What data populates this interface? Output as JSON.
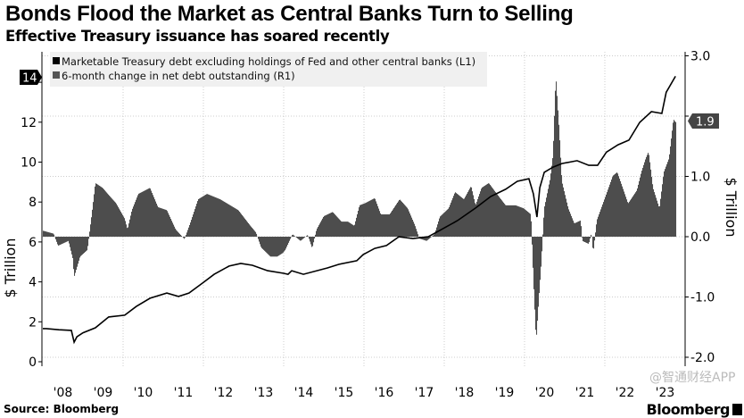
{
  "chart_data": {
    "type": "bar+line",
    "title": "Bonds Flood the Market as Central Banks Turn to Selling",
    "subtitle": "Effective Treasury issuance has soared recently",
    "source": "Source: Bloomberg",
    "brand": "Bloomberg",
    "watermark": "@智通财经APP",
    "xlabel": "",
    "x_ticks": [
      "'08",
      "'09",
      "'10",
      "'11",
      "'12",
      "'13",
      "'14",
      "'15",
      "'16",
      "'17",
      "'18",
      "'19",
      "'20",
      "'21",
      "'22",
      "'23"
    ],
    "xlim": [
      2008,
      2024
    ],
    "left_axis": {
      "label": "$ Trillion",
      "ticks": [
        0,
        2,
        4,
        6,
        8,
        10,
        12,
        14
      ],
      "ylim": [
        0,
        14.5
      ],
      "last_value_tag": "14"
    },
    "right_axis": {
      "label": "$ Trillion",
      "ticks": [
        "-2.0",
        "-1.0",
        "0.0",
        "1.0",
        "2.0",
        "3.0"
      ],
      "ylim": [
        -2.05,
        3.0
      ],
      "last_value_tag": "1.9"
    },
    "grid": true,
    "legend_placement": "top-left",
    "colors": {
      "line": "#000000",
      "bars": "#4d4d4d",
      "legend_bg": "#f0f0f0",
      "grid": "#cccccc"
    },
    "series": [
      {
        "name": "Marketable Treasury debt excluding holdings of Fed and other central banks (L1)",
        "type": "line",
        "axis": "left",
        "points": [
          [
            2008.0,
            1.66
          ],
          [
            2008.09,
            1.66
          ],
          [
            2008.4,
            1.6
          ],
          [
            2008.71,
            1.57
          ],
          [
            2008.78,
            0.98
          ],
          [
            2008.85,
            1.25
          ],
          [
            2009.0,
            1.45
          ],
          [
            2009.31,
            1.7
          ],
          [
            2009.64,
            2.24
          ],
          [
            2010.04,
            2.33
          ],
          [
            2010.33,
            2.77
          ],
          [
            2010.67,
            3.18
          ],
          [
            2011.09,
            3.44
          ],
          [
            2011.38,
            3.27
          ],
          [
            2011.64,
            3.44
          ],
          [
            2011.98,
            3.94
          ],
          [
            2012.27,
            4.38
          ],
          [
            2012.64,
            4.79
          ],
          [
            2012.93,
            4.92
          ],
          [
            2013.22,
            4.83
          ],
          [
            2013.6,
            4.56
          ],
          [
            2014.0,
            4.43
          ],
          [
            2014.11,
            4.38
          ],
          [
            2014.2,
            4.56
          ],
          [
            2014.49,
            4.38
          ],
          [
            2015.09,
            4.7
          ],
          [
            2015.38,
            4.88
          ],
          [
            2015.82,
            5.06
          ],
          [
            2015.98,
            5.37
          ],
          [
            2016.27,
            5.68
          ],
          [
            2016.56,
            5.82
          ],
          [
            2016.87,
            6.26
          ],
          [
            2017.22,
            6.17
          ],
          [
            2017.6,
            6.26
          ],
          [
            2017.89,
            6.58
          ],
          [
            2018.33,
            7.07
          ],
          [
            2018.78,
            7.7
          ],
          [
            2019.16,
            8.28
          ],
          [
            2019.53,
            8.64
          ],
          [
            2019.82,
            9.04
          ],
          [
            2020.11,
            9.17
          ],
          [
            2020.22,
            8.41
          ],
          [
            2020.31,
            7.25
          ],
          [
            2020.38,
            8.72
          ],
          [
            2020.49,
            9.49
          ],
          [
            2020.71,
            9.75
          ],
          [
            2020.93,
            9.93
          ],
          [
            2021.31,
            10.07
          ],
          [
            2021.6,
            9.84
          ],
          [
            2021.82,
            9.84
          ],
          [
            2022.04,
            10.5
          ],
          [
            2022.33,
            10.87
          ],
          [
            2022.6,
            11.1
          ],
          [
            2022.87,
            11.99
          ],
          [
            2023.16,
            12.53
          ],
          [
            2023.42,
            12.44
          ],
          [
            2023.53,
            13.5
          ],
          [
            2023.76,
            14.3
          ]
        ]
      },
      {
        "name": "6-month change in net debt outstanding (R1)",
        "type": "bar",
        "axis": "right",
        "points": [
          [
            2008.0,
            0.1
          ],
          [
            2008.27,
            0.05
          ],
          [
            2008.38,
            -0.15
          ],
          [
            2008.64,
            -0.07
          ],
          [
            2008.75,
            -0.37
          ],
          [
            2008.78,
            -0.67
          ],
          [
            2008.93,
            -0.33
          ],
          [
            2009.11,
            -0.22
          ],
          [
            2009.22,
            0.37
          ],
          [
            2009.31,
            0.89
          ],
          [
            2009.49,
            0.81
          ],
          [
            2009.67,
            0.67
          ],
          [
            2009.82,
            0.56
          ],
          [
            2010.04,
            0.3
          ],
          [
            2010.11,
            0.12
          ],
          [
            2010.22,
            0.44
          ],
          [
            2010.38,
            0.71
          ],
          [
            2010.67,
            0.81
          ],
          [
            2010.87,
            0.49
          ],
          [
            2011.09,
            0.44
          ],
          [
            2011.31,
            0.12
          ],
          [
            2011.53,
            -0.04
          ],
          [
            2011.67,
            0.22
          ],
          [
            2011.87,
            0.62
          ],
          [
            2012.09,
            0.71
          ],
          [
            2012.42,
            0.62
          ],
          [
            2012.87,
            0.44
          ],
          [
            2013.16,
            0.19
          ],
          [
            2013.31,
            0.07
          ],
          [
            2013.44,
            -0.18
          ],
          [
            2013.67,
            -0.33
          ],
          [
            2013.84,
            -0.33
          ],
          [
            2013.98,
            -0.27
          ],
          [
            2014.04,
            -0.22
          ],
          [
            2014.22,
            0.04
          ],
          [
            2014.42,
            -0.07
          ],
          [
            2014.6,
            0.03
          ],
          [
            2014.71,
            -0.19
          ],
          [
            2014.82,
            0.12
          ],
          [
            2015.0,
            0.34
          ],
          [
            2015.22,
            0.41
          ],
          [
            2015.44,
            0.25
          ],
          [
            2015.6,
            0.25
          ],
          [
            2015.76,
            0.18
          ],
          [
            2015.89,
            0.52
          ],
          [
            2016.04,
            0.56
          ],
          [
            2016.27,
            0.64
          ],
          [
            2016.42,
            0.37
          ],
          [
            2016.64,
            0.37
          ],
          [
            2016.89,
            0.62
          ],
          [
            2017.09,
            0.47
          ],
          [
            2017.27,
            0.19
          ],
          [
            2017.38,
            -0.03
          ],
          [
            2017.56,
            -0.07
          ],
          [
            2017.76,
            0.04
          ],
          [
            2017.89,
            0.33
          ],
          [
            2018.11,
            0.47
          ],
          [
            2018.27,
            0.74
          ],
          [
            2018.49,
            0.62
          ],
          [
            2018.67,
            0.84
          ],
          [
            2018.78,
            0.52
          ],
          [
            2018.93,
            0.81
          ],
          [
            2019.11,
            0.89
          ],
          [
            2019.31,
            0.71
          ],
          [
            2019.53,
            0.52
          ],
          [
            2019.78,
            0.52
          ],
          [
            2019.98,
            0.47
          ],
          [
            2020.16,
            0.37
          ],
          [
            2020.22,
            -0.67
          ],
          [
            2020.29,
            -1.73
          ],
          [
            2020.36,
            -1.0
          ],
          [
            2020.42,
            -0.41
          ],
          [
            2020.49,
            0.47
          ],
          [
            2020.64,
            0.96
          ],
          [
            2020.71,
            1.36
          ],
          [
            2020.78,
            2.67
          ],
          [
            2020.87,
            1.7
          ],
          [
            2020.93,
            0.92
          ],
          [
            2021.09,
            0.47
          ],
          [
            2021.24,
            0.22
          ],
          [
            2021.4,
            0.27
          ],
          [
            2021.44,
            -0.07
          ],
          [
            2021.6,
            -0.12
          ],
          [
            2021.67,
            0.07
          ],
          [
            2021.71,
            -0.27
          ],
          [
            2021.8,
            0.27
          ],
          [
            2022.04,
            0.71
          ],
          [
            2022.2,
            1.01
          ],
          [
            2022.31,
            1.07
          ],
          [
            2022.42,
            0.86
          ],
          [
            2022.58,
            0.55
          ],
          [
            2022.8,
            0.77
          ],
          [
            2022.91,
            1.07
          ],
          [
            2023.02,
            1.3
          ],
          [
            2023.09,
            1.41
          ],
          [
            2023.2,
            0.81
          ],
          [
            2023.36,
            0.47
          ],
          [
            2023.47,
            1.07
          ],
          [
            2023.6,
            1.3
          ],
          [
            2023.71,
            1.95
          ],
          [
            2023.76,
            1.9
          ]
        ]
      }
    ]
  }
}
